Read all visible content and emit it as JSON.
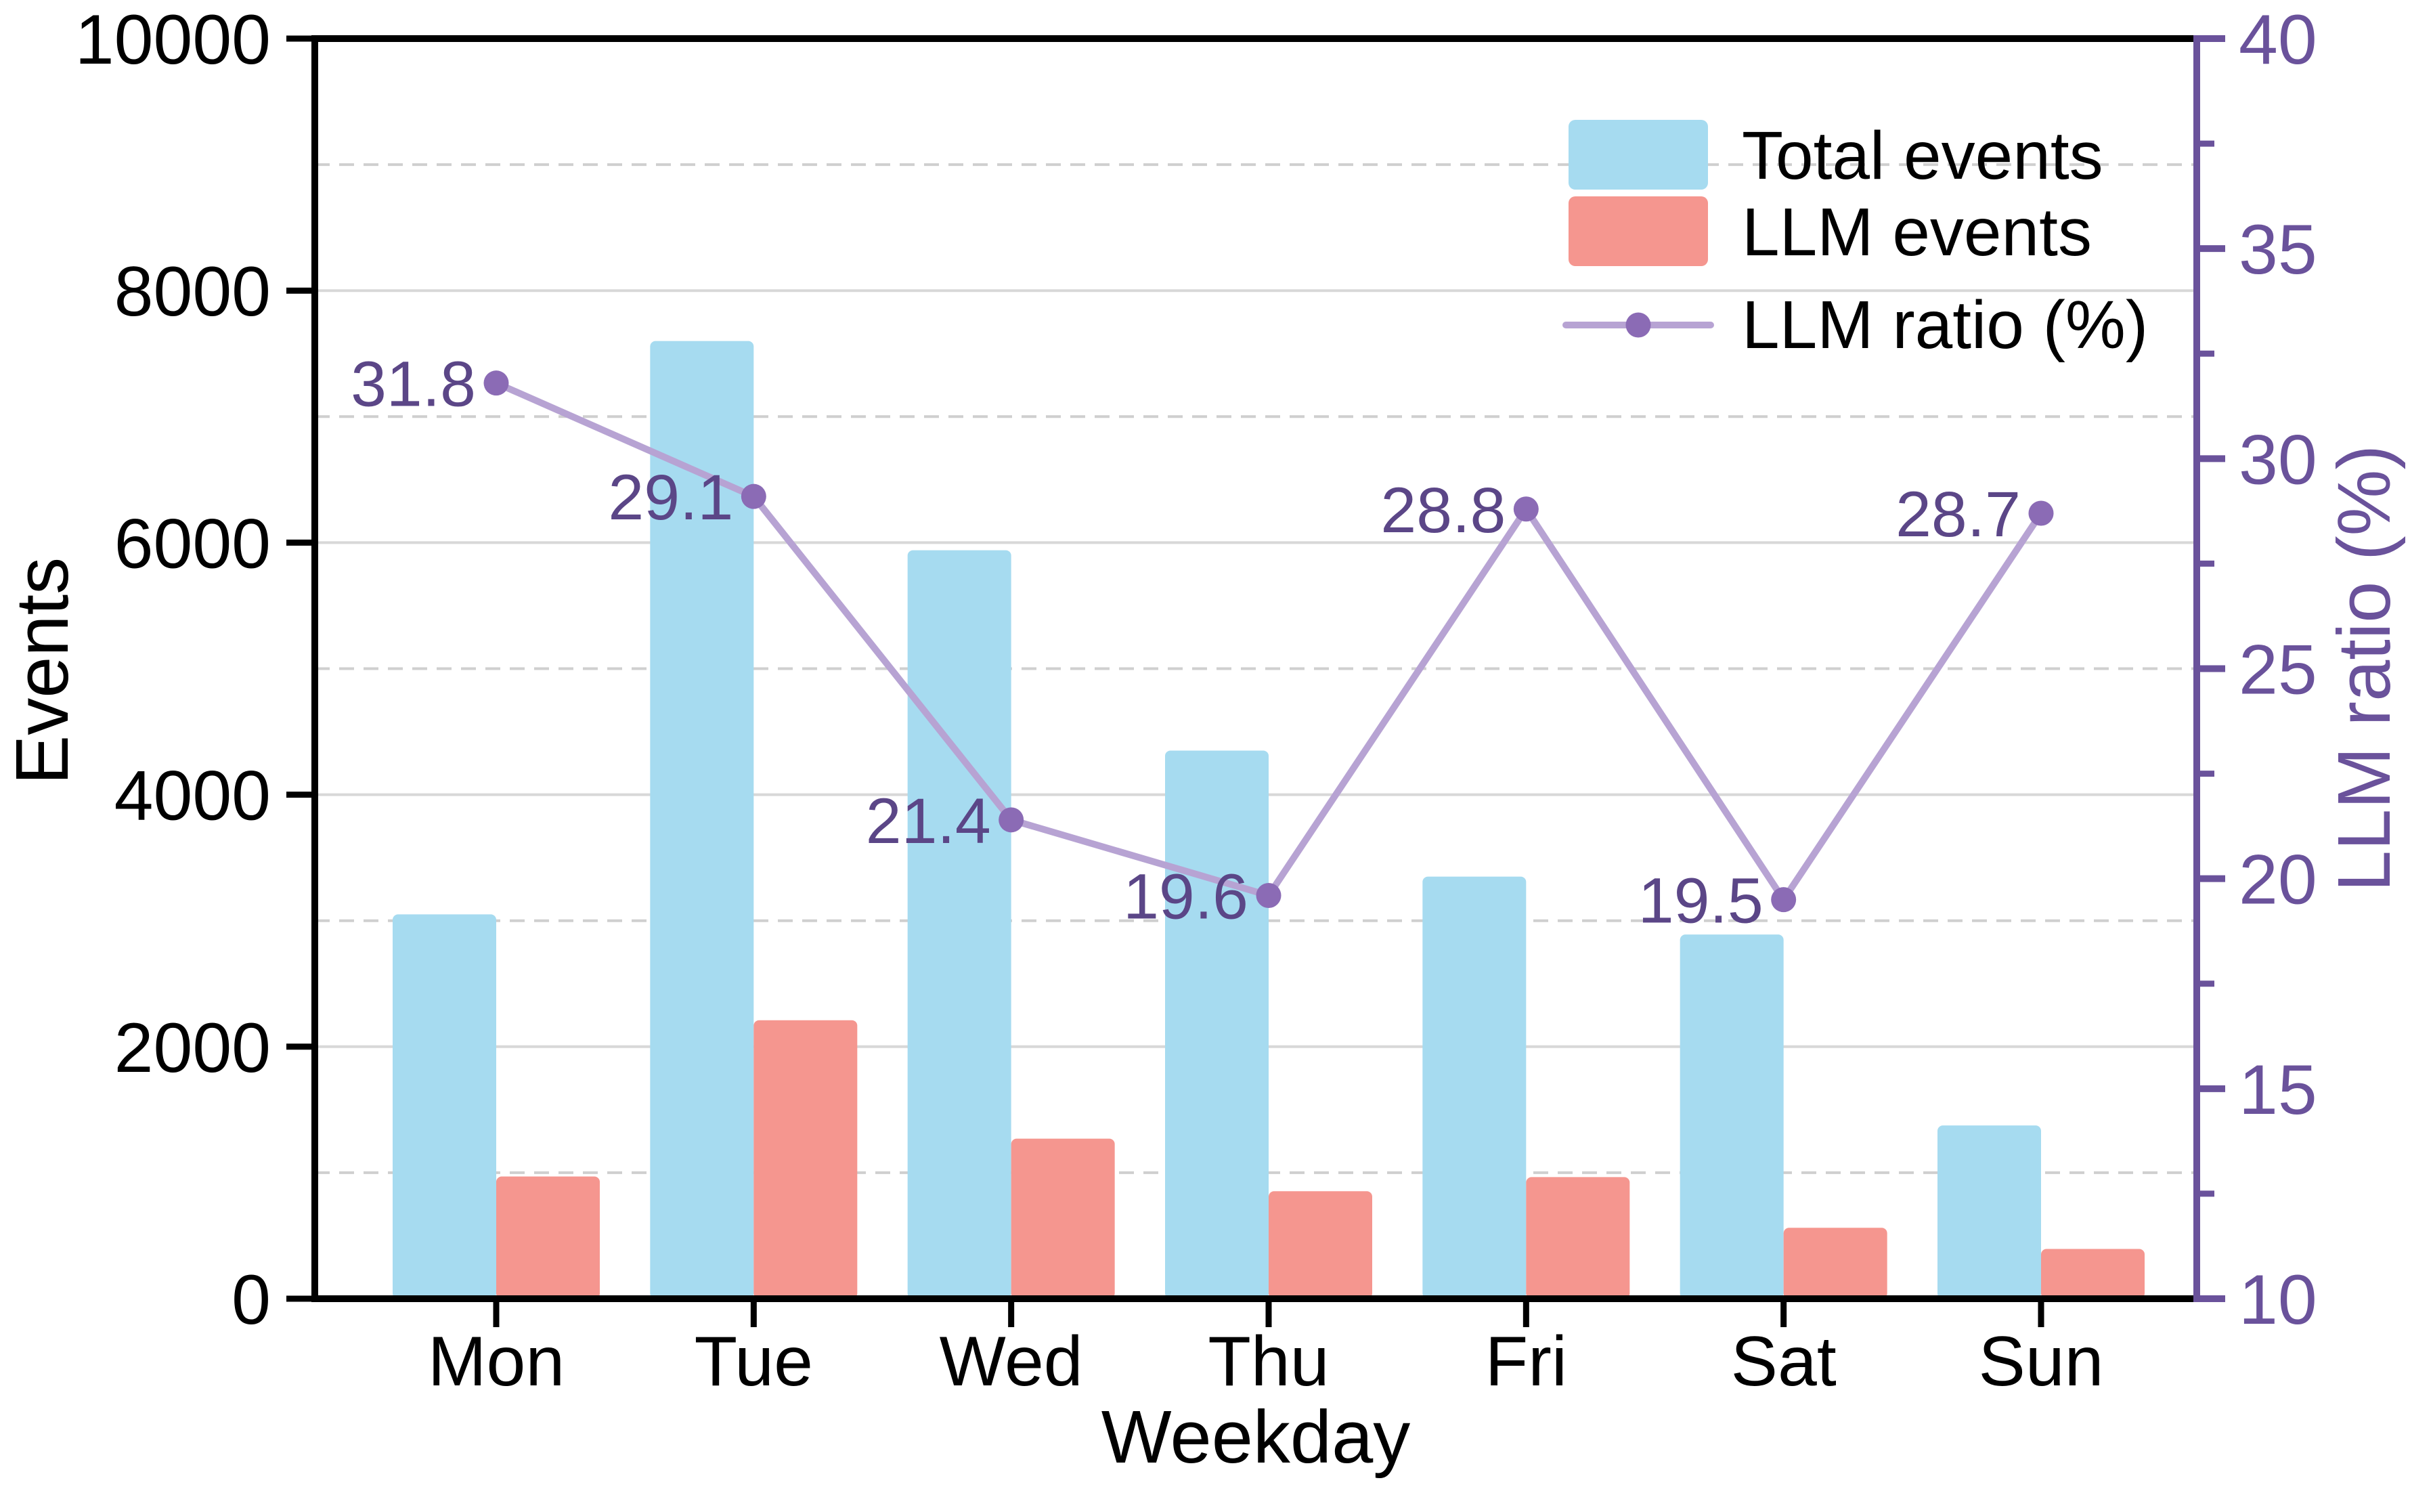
{
  "chart_data": {
    "type": "bar",
    "title": "",
    "categories": [
      "Mon",
      "Tue",
      "Wed",
      "Thu",
      "Fri",
      "Sat",
      "Sun"
    ],
    "series": [
      {
        "name": "Total events",
        "type": "bar",
        "axis": "left",
        "color": "#a6dbf0",
        "values": [
          3050,
          7600,
          5940,
          4350,
          3350,
          2890,
          1375
        ]
      },
      {
        "name": "LLM events",
        "type": "bar",
        "axis": "left",
        "color": "#f5968f",
        "values": [
          970,
          2210,
          1270,
          853,
          965,
          563,
          395
        ]
      },
      {
        "name": "LLM ratio (%)",
        "type": "line",
        "axis": "right",
        "color": "#b7a3d3",
        "marker_color": "#8b6bb5",
        "values": [
          31.8,
          29.1,
          21.4,
          19.6,
          28.8,
          19.5,
          28.7
        ],
        "value_labels": [
          "31.8",
          "29.1",
          "21.4",
          "19.6",
          "28.8",
          "19.5",
          "28.7"
        ]
      }
    ],
    "xlabel": "Weekday",
    "ylabel_left": "Events",
    "ylabel_right": "LLM ratio (%)",
    "ylim_left": [
      0,
      10000
    ],
    "yticks_left": [
      0,
      2000,
      4000,
      6000,
      8000,
      10000
    ],
    "ytick_labels_left": [
      "0",
      "2000",
      "4000",
      "6000",
      "8000",
      "10000"
    ],
    "minor_grid_left": [
      1000,
      3000,
      5000,
      7000,
      9000
    ],
    "ylim_right": [
      10,
      40
    ],
    "yticks_right": [
      10,
      15,
      20,
      25,
      30,
      35,
      40
    ],
    "ytick_labels_right": [
      "10",
      "15",
      "20",
      "25",
      "30",
      "35",
      "40"
    ],
    "yticks_right_minor": [
      12.5,
      17.5,
      22.5,
      27.5,
      32.5,
      37.5
    ],
    "grid": {
      "major": "solid",
      "minor": "dashed",
      "major_color": "#d8d8d8",
      "minor_color": "#cfcfcf"
    },
    "legend": {
      "position": "top-right-inside",
      "frame": false,
      "entries": [
        "Total events",
        "LLM events",
        "LLM ratio (%)"
      ]
    },
    "colors": {
      "axis_black": "#000000",
      "right_axis_purple": "#6a529b",
      "data_label_purple": "#5b4687",
      "line_purple": "#b7a3d3",
      "marker_purple": "#8b6bb5",
      "total_bar": "#a6dbf0",
      "llm_bar": "#f5968f"
    }
  }
}
